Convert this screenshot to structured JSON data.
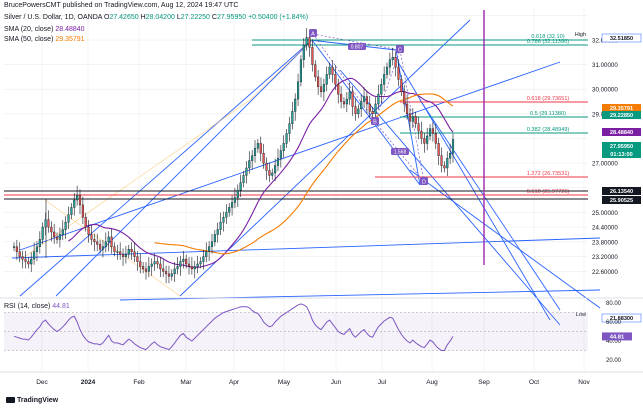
{
  "publisher": "BrucePowersCMT published on TradingView.com, Aug 12, 2024 19:47 UTC",
  "symbol_line": "Silver / U.S. Dollar, 1D, OANDA",
  "ohlc": {
    "o_label": "O",
    "o": "27.42650",
    "h_label": "H",
    "h": "28.04200",
    "l_label": "L",
    "l": "27.22250",
    "c_label": "C",
    "c": "27.95950",
    "change": "+0.50400 (+1.84%)"
  },
  "sma20": {
    "label": "SMA (20, close)",
    "value": "28.48840",
    "color": "#7b1fa2"
  },
  "sma50": {
    "label": "SMA (50, close)",
    "value": "29.35791",
    "color": "#f57c00"
  },
  "colors": {
    "up": "#26a69a",
    "down": "#ef5350",
    "candle": "#000000",
    "trend": "#2962ff",
    "fib_teal": "#089981",
    "fib_red": "#f23645",
    "magenta": "#9c27b0",
    "vline": "#9c27b0",
    "grid": "#e8e8e8"
  },
  "chart_data": [
    {
      "type": "candlestick",
      "title": "Silver / U.S. Dollar, 1D, OANDA",
      "x_ticks": [
        "Dec",
        "2024",
        "Feb",
        "Mar",
        "Apr",
        "May",
        "Jun",
        "Jul",
        "Aug",
        "Sep",
        "Oct",
        "Nov"
      ],
      "y_ticks": [
        "32.00000",
        "31.00000",
        "30.00000",
        "29.00000",
        "27.00000",
        "25.00000",
        "24.40000",
        "23.80000",
        "23.20000",
        "22.60000"
      ],
      "ylim": [
        21.6,
        33.3
      ],
      "closes": [
        23.6,
        23.4,
        23.2,
        23.1,
        23.0,
        22.9,
        23.1,
        23.4,
        23.6,
        23.9,
        24.4,
        24.7,
        24.4,
        24.2,
        24.0,
        23.9,
        24.1,
        24.3,
        24.6,
        24.9,
        25.2,
        25.5,
        25.7,
        25.3,
        24.8,
        24.4,
        24.1,
        23.9,
        23.8,
        23.7,
        23.5,
        23.6,
        23.8,
        24.0,
        23.6,
        23.4,
        23.4,
        23.3,
        23.2,
        23.3,
        23.5,
        23.4,
        23.2,
        23.0,
        22.8,
        22.7,
        22.6,
        22.8,
        22.9,
        23.0,
        22.9,
        22.7,
        22.6,
        22.5,
        22.4,
        22.5,
        22.7,
        22.8,
        23.0,
        23.1,
        22.9,
        22.8,
        22.7,
        22.8,
        22.9,
        23.0,
        23.2,
        23.4,
        23.6,
        23.8,
        24.1,
        24.3,
        24.6,
        24.8,
        25.0,
        25.2,
        25.4,
        25.6,
        25.9,
        26.2,
        26.5,
        26.8,
        27.1,
        27.3,
        27.6,
        27.8,
        27.4,
        27.0,
        26.7,
        26.5,
        26.6,
        26.9,
        27.2,
        27.5,
        27.8,
        28.2,
        28.6,
        29.1,
        29.6,
        30.3,
        31.2,
        31.8,
        32.1,
        31.7,
        31.0,
        30.5,
        30.1,
        29.9,
        30.2,
        30.6,
        30.9,
        30.6,
        30.2,
        29.8,
        29.5,
        29.4,
        29.6,
        29.9,
        29.3,
        29.0,
        29.2,
        29.5,
        29.7,
        29.4,
        29.1,
        29.0,
        29.4,
        29.8,
        30.2,
        30.6,
        30.9,
        31.2,
        31.3,
        30.9,
        30.4,
        29.9,
        29.4,
        29.0,
        28.7,
        28.9,
        28.6,
        28.3,
        28.0,
        27.8,
        28.1,
        28.4,
        28.2,
        27.8,
        27.3,
        26.9,
        26.8,
        27.2,
        27.4,
        27.96
      ],
      "series": [
        {
          "name": "SMA (20, close)",
          "value": "28.48840"
        },
        {
          "name": "SMA (50, close)",
          "value": "29.35791"
        }
      ],
      "levels": [
        {
          "label": "0.618 (29.73651)",
          "value": 29.73651,
          "color": "#f23645"
        },
        {
          "label": "0.5 (29.11380)",
          "value": 29.1138,
          "color": "#089981"
        },
        {
          "label": "0.382 (28.48949)",
          "value": 28.48949,
          "color": "#089981"
        },
        {
          "label": "1.272 (26.73531)",
          "value": 26.73531,
          "color": "#f23645"
        },
        {
          "label": "0.618 (25.97726)",
          "value": 25.97726,
          "color": "#f23645"
        },
        {
          "label": "0.618 (32.10)",
          "value": 32.1,
          "color": "#089981"
        },
        {
          "label": "0.786 (32.11390)",
          "value": 32.1139,
          "color": "#089981"
        }
      ],
      "price_labels": [
        {
          "label": "High",
          "value": "32.51850",
          "color": "#ffffff",
          "text": "#131722"
        },
        {
          "label": "",
          "value": "29.35791",
          "color": "#f57c00",
          "text": "#ffffff"
        },
        {
          "label": "",
          "value": "29.22850",
          "color": "#089981",
          "text": "#ffffff"
        },
        {
          "label": "",
          "value": "28.48840",
          "color": "#7b1fa2",
          "text": "#ffffff"
        },
        {
          "label": "",
          "value": "27.95950",
          "color": "#089981",
          "text": "#ffffff"
        },
        {
          "label": "",
          "value": "01:13:00",
          "color": "#089981",
          "text": "#ffffff"
        },
        {
          "label": "",
          "value": "26.13540",
          "color": "#131722",
          "text": "#ffffff"
        },
        {
          "label": "",
          "value": "25.90525",
          "color": "#131722",
          "text": "#ffffff"
        },
        {
          "label": "Low",
          "value": "21.88300",
          "color": "#ffffff",
          "text": "#131722"
        }
      ],
      "pattern_points": [
        "A",
        "B",
        "C",
        "D"
      ],
      "pattern_ratios": [
        "0.807",
        "1.568"
      ]
    },
    {
      "type": "line",
      "title": "RSI (14, close)",
      "value": "44.81",
      "y_ticks": [
        "80.00",
        "60.00",
        "40.00",
        "20.00"
      ],
      "ylim": [
        20,
        80
      ],
      "values": [
        45,
        44,
        43,
        42,
        42,
        41,
        44,
        48,
        52,
        55,
        60,
        62,
        58,
        55,
        52,
        50,
        52,
        55,
        58,
        62,
        65,
        66,
        60,
        52,
        46,
        42,
        39,
        38,
        37,
        37,
        36,
        38,
        42,
        46,
        40,
        38,
        38,
        37,
        36,
        39,
        42,
        40,
        37,
        35,
        33,
        32,
        31,
        34,
        37,
        39,
        36,
        34,
        33,
        32,
        31,
        34,
        38,
        42,
        46,
        48,
        44,
        42,
        40,
        43,
        46,
        49,
        52,
        55,
        58,
        61,
        64,
        66,
        68,
        70,
        71,
        72,
        73,
        74,
        75,
        76,
        76,
        76,
        75,
        72,
        70,
        69,
        65,
        60,
        57,
        55,
        56,
        60,
        63,
        66,
        68,
        70,
        72,
        74,
        76,
        78,
        79,
        78,
        76,
        70,
        62,
        57,
        54,
        52,
        56,
        60,
        62,
        58,
        54,
        50,
        48,
        47,
        50,
        53,
        47,
        44,
        47,
        50,
        52,
        48,
        45,
        44,
        50,
        55,
        58,
        61,
        63,
        65,
        64,
        58,
        52,
        47,
        43,
        40,
        38,
        41,
        38,
        36,
        34,
        33,
        37,
        41,
        39,
        35,
        32,
        30,
        30,
        36,
        40,
        44.81
      ]
    }
  ],
  "footer": {
    "brand": "TradingView"
  }
}
